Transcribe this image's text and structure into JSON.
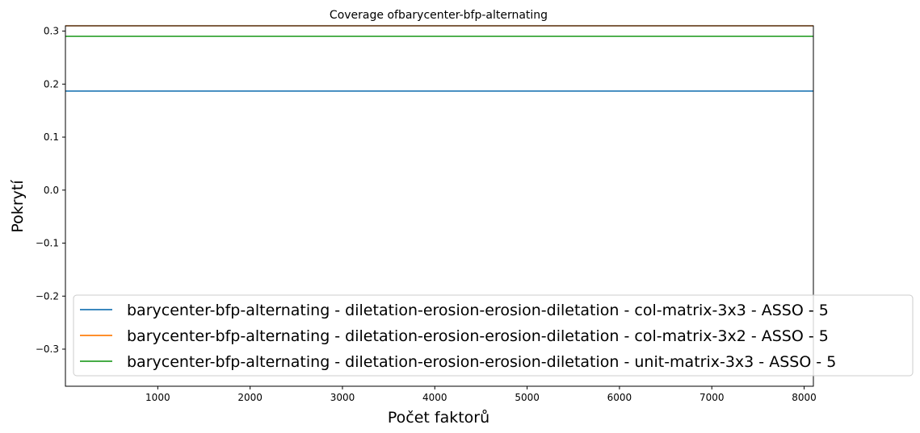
{
  "chart_data": {
    "type": "line",
    "title": "Coverage ofbarycenter-bfp-alternating",
    "xlabel": "Počet faktorů",
    "ylabel": "Pokrytí",
    "xlim": [
      0,
      8100
    ],
    "ylim": [
      -0.37,
      0.31
    ],
    "xticks": [
      1000,
      2000,
      3000,
      4000,
      5000,
      6000,
      7000,
      8000
    ],
    "yticks": [
      -0.3,
      -0.2,
      -0.1,
      0.0,
      0.1,
      0.2,
      0.3
    ],
    "ytick_labels": [
      "−0.3",
      "−0.2",
      "−0.1",
      "0.0",
      "0.1",
      "0.2",
      "0.3"
    ],
    "grid": false,
    "legend_position": "lower-right",
    "series": [
      {
        "name": "barycenter-bfp-alternating - diletation-erosion-erosion-diletation - col-matrix-3x3 - ASSO - 5",
        "color": "#1f77b4",
        "x": [
          0,
          8100
        ],
        "y": [
          0.187,
          0.187
        ]
      },
      {
        "name": "barycenter-bfp-alternating - diletation-erosion-erosion-diletation - col-matrix-3x2 - ASSO - 5",
        "color": "#ff7f0e",
        "x": [
          0,
          8100
        ],
        "y": [
          0.31,
          0.31
        ]
      },
      {
        "name": "barycenter-bfp-alternating - diletation-erosion-erosion-diletation - unit-matrix-3x3 - ASSO - 5",
        "color": "#2ca02c",
        "x": [
          0,
          8100
        ],
        "y": [
          0.29,
          0.29
        ]
      }
    ]
  }
}
